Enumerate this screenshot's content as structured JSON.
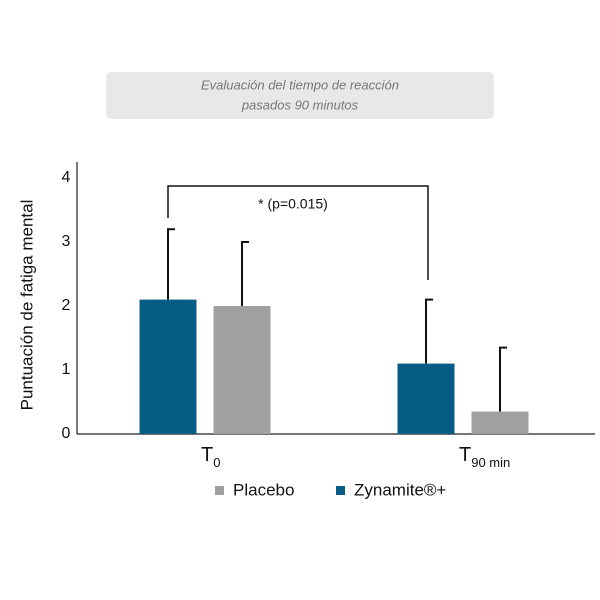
{
  "chart_data": {
    "type": "bar",
    "title": [
      "Evaluación del tiempo de reacción",
      "pasados 90 minutos"
    ],
    "y_label": "Puntuación de fatiga mental",
    "categories": [
      {
        "text": "T",
        "subscript": "0"
      },
      {
        "text": "T",
        "subscript": "90 min"
      }
    ],
    "series": [
      {
        "name": "Zynamite®+",
        "color": "#075c85",
        "values": [
          2.1,
          1.1
        ],
        "errors": [
          1.1,
          1.0
        ]
      },
      {
        "name": "Placebo",
        "color": "#a0a0a0",
        "values": [
          2.0,
          0.35
        ],
        "errors": [
          1.0,
          1.0
        ]
      }
    ],
    "legend_order": [
      1,
      0
    ],
    "annotation": "* (p=0.015)",
    "ylim": [
      0,
      4
    ],
    "yticks": [
      0,
      1,
      2,
      3,
      4
    ],
    "grid": false
  }
}
